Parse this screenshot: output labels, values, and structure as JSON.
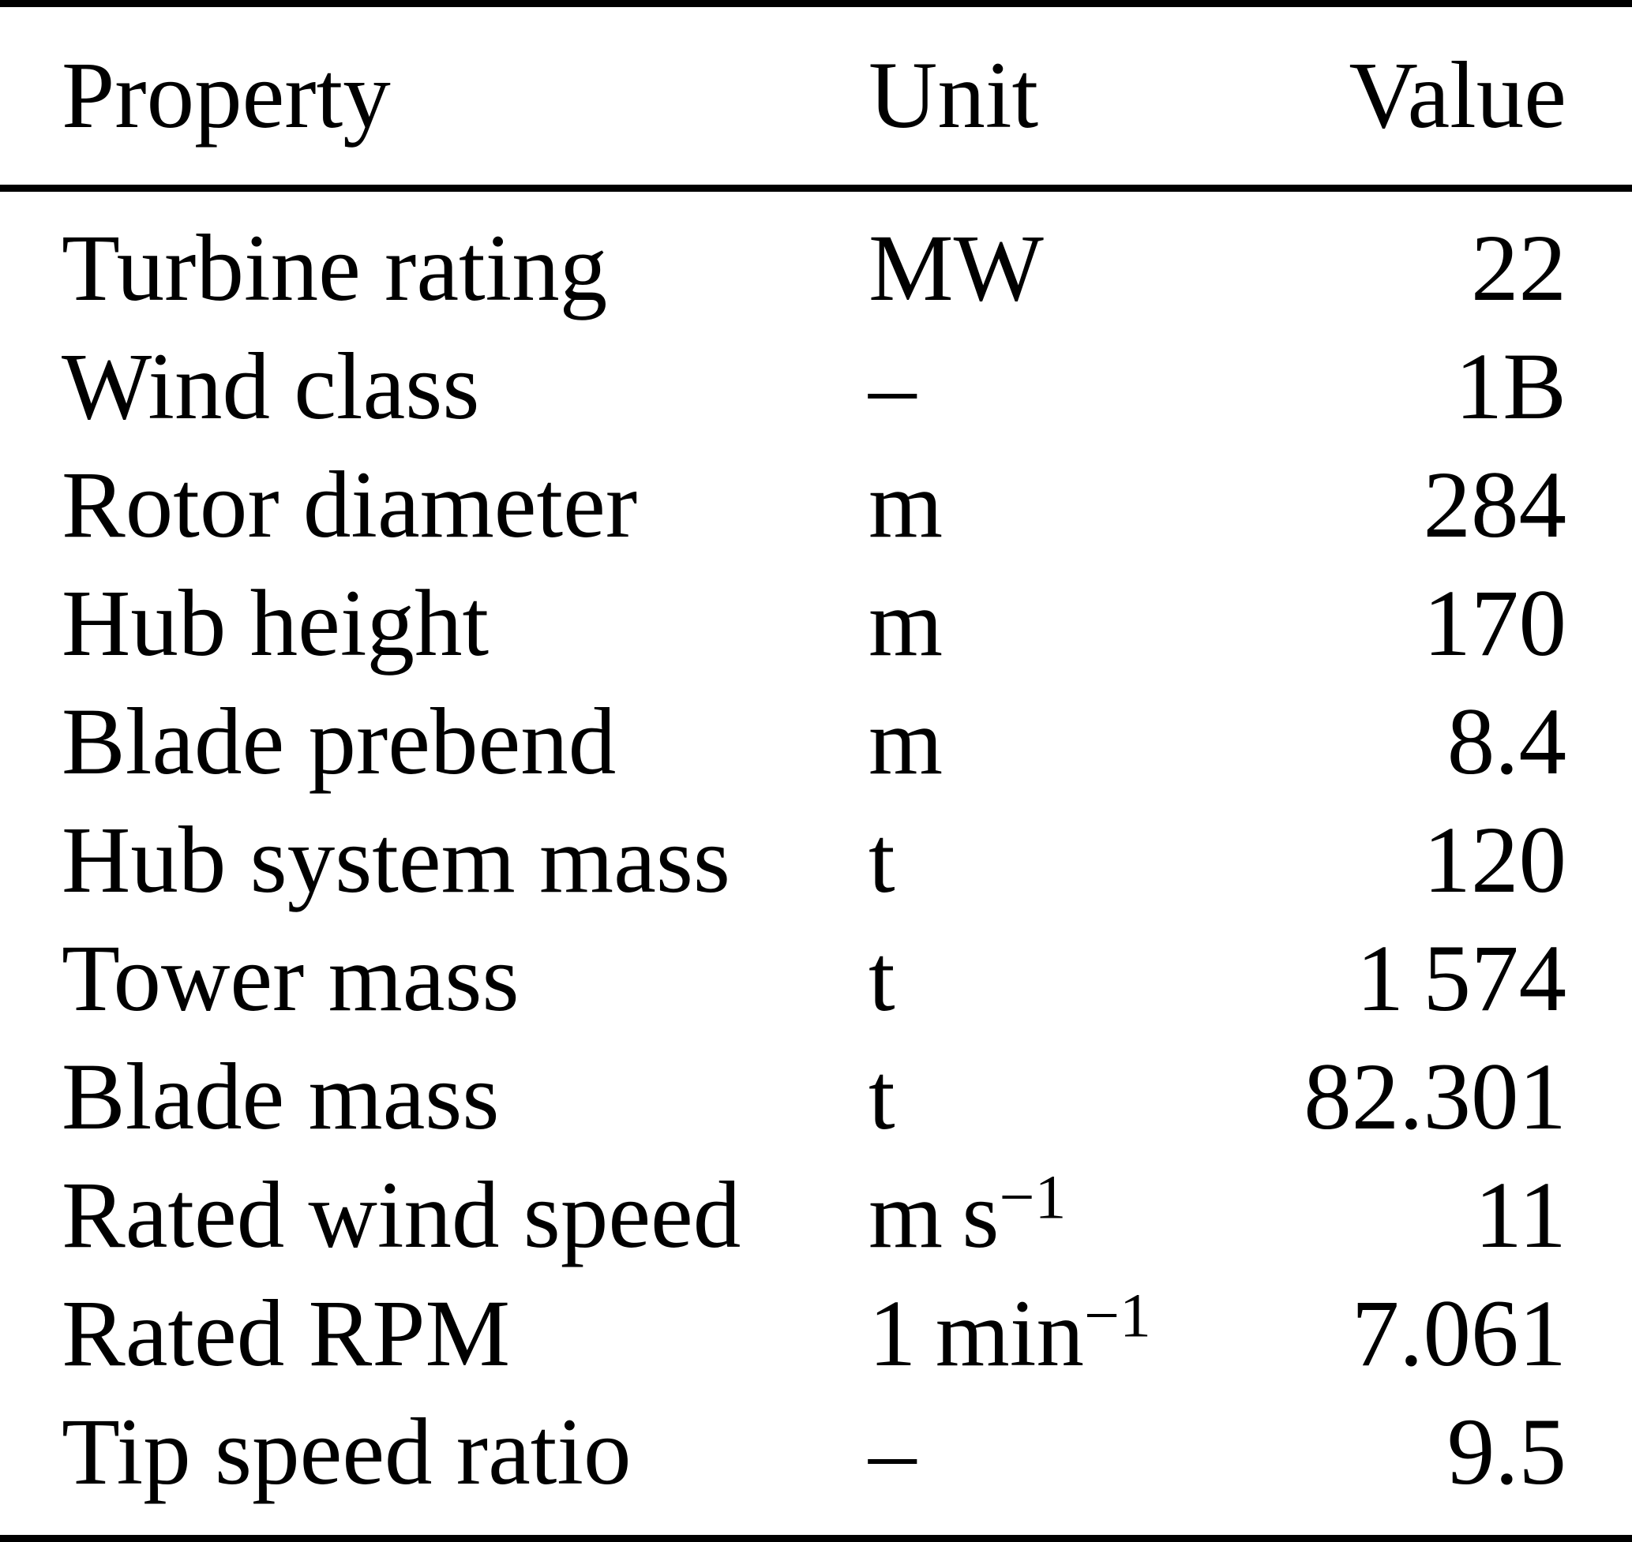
{
  "title": "Turbine key properties table",
  "colors": {
    "background": "#ffffff",
    "text": "#000000",
    "rule": "#000000"
  },
  "table": {
    "header": {
      "property": "Property",
      "unit": "Unit",
      "value": "Value"
    },
    "rows": [
      {
        "property": "Turbine rating",
        "unit": "MW",
        "unit_exponent": "",
        "value": "22"
      },
      {
        "property": "Wind class",
        "unit": "–",
        "unit_exponent": "",
        "value": "1B"
      },
      {
        "property": "Rotor diameter",
        "unit": "m",
        "unit_exponent": "",
        "value": "284"
      },
      {
        "property": "Hub height",
        "unit": "m",
        "unit_exponent": "",
        "value": "170"
      },
      {
        "property": "Blade prebend",
        "unit": "m",
        "unit_exponent": "",
        "value": "8.4"
      },
      {
        "property": "Hub system mass",
        "unit": "t",
        "unit_exponent": "",
        "value": "120"
      },
      {
        "property": "Tower mass",
        "unit": "t",
        "unit_exponent": "",
        "value": "1 574"
      },
      {
        "property": "Blade mass",
        "unit": "t",
        "unit_exponent": "",
        "value": "82.301"
      },
      {
        "property": "Rated wind speed",
        "unit": "m s",
        "unit_exponent": "−1",
        "value": "11"
      },
      {
        "property": "Rated RPM",
        "unit": "1 min",
        "unit_exponent": "−1",
        "value": "7.061"
      },
      {
        "property": "Tip speed ratio",
        "unit": "–",
        "unit_exponent": "",
        "value": "9.5"
      }
    ]
  }
}
